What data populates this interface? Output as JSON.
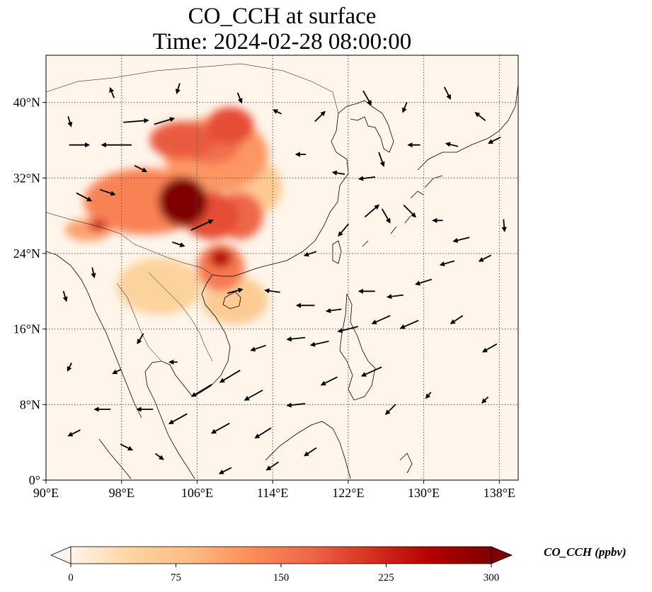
{
  "title_line1": "CO_CCH at surface",
  "title_line2": "Time: 2024-02-28 08:00:00",
  "map": {
    "lon_range": [
      90,
      140
    ],
    "lat_range": [
      0,
      45
    ],
    "lon_ticks": [
      {
        "value": 90,
        "label": "90°E"
      },
      {
        "value": 98,
        "label": "98°E"
      },
      {
        "value": 106,
        "label": "106°E"
      },
      {
        "value": 114,
        "label": "114°E"
      },
      {
        "value": 122,
        "label": "122°E"
      },
      {
        "value": 130,
        "label": "130°E"
      },
      {
        "value": 138,
        "label": "138°E"
      }
    ],
    "lat_ticks": [
      {
        "value": 0,
        "label": "0°"
      },
      {
        "value": 8,
        "label": "8°N"
      },
      {
        "value": 16,
        "label": "16°N"
      },
      {
        "value": 24,
        "label": "24°N"
      },
      {
        "value": 32,
        "label": "32°N"
      },
      {
        "value": 40,
        "label": "40°N"
      }
    ],
    "gridlines": "dotted",
    "background_color": "#fff5eb",
    "plumes": [
      {
        "lon": 100.5,
        "lat": 29.5,
        "rlon": 6.5,
        "rlat": 3.5,
        "value": 140
      },
      {
        "lon": 108.0,
        "lat": 34.5,
        "rlon": 5.5,
        "rlat": 4.0,
        "value": 120
      },
      {
        "lon": 104.5,
        "lat": 36.0,
        "rlon": 3.5,
        "rlat": 2.0,
        "value": 180
      },
      {
        "lon": 109.5,
        "lat": 37.5,
        "rlon": 2.5,
        "rlat": 2.0,
        "value": 190
      },
      {
        "lon": 107.5,
        "lat": 35.5,
        "rlon": 3.0,
        "rlat": 2.0,
        "value": 160
      },
      {
        "lon": 104.5,
        "lat": 29.5,
        "rlon": 2.6,
        "rlat": 2.6,
        "value": 300
      },
      {
        "lon": 107.5,
        "lat": 28.0,
        "rlon": 3.0,
        "rlat": 2.5,
        "value": 190
      },
      {
        "lon": 110.5,
        "lat": 28.0,
        "rlon": 2.5,
        "rlat": 2.5,
        "value": 170
      },
      {
        "lon": 108.5,
        "lat": 22.5,
        "rlon": 2.5,
        "rlat": 2.5,
        "value": 150
      },
      {
        "lon": 108.5,
        "lat": 23.5,
        "rlon": 1.2,
        "rlat": 1.0,
        "value": 250
      },
      {
        "lon": 94.5,
        "lat": 26.5,
        "rlon": 2.5,
        "rlat": 1.2,
        "value": 110
      },
      {
        "lon": 95.5,
        "lat": 27.0,
        "rlon": 1.0,
        "rlat": 0.6,
        "value": 230
      },
      {
        "lon": 102.0,
        "lat": 20.5,
        "rlon": 4.5,
        "rlat": 3.0,
        "value": 45
      },
      {
        "lon": 110.0,
        "lat": 19.0,
        "rlon": 3.5,
        "rlat": 2.5,
        "value": 60
      },
      {
        "lon": 112.0,
        "lat": 31.0,
        "rlon": 3.0,
        "rlat": 3.0,
        "value": 60
      }
    ],
    "wind_vectors": [
      {
        "lon": 97.5,
        "lat": 35.5,
        "u": -3,
        "v": 0
      },
      {
        "lon": 99.5,
        "lat": 38.0,
        "u": 2.5,
        "v": 0.2
      },
      {
        "lon": 102.5,
        "lat": 38.0,
        "u": 2,
        "v": 0.6
      },
      {
        "lon": 93.5,
        "lat": 35.5,
        "u": 2,
        "v": 0
      },
      {
        "lon": 96.5,
        "lat": 30.5,
        "u": 1.5,
        "v": -0.5
      },
      {
        "lon": 94.0,
        "lat": 30.0,
        "u": 1.5,
        "v": -0.8
      },
      {
        "lon": 100.0,
        "lat": 33.0,
        "u": 1.2,
        "v": -0.6
      },
      {
        "lon": 106.5,
        "lat": 27.0,
        "u": 2.2,
        "v": 1
      },
      {
        "lon": 104.0,
        "lat": 25.0,
        "u": 1.2,
        "v": -0.4
      },
      {
        "lon": 110.0,
        "lat": 20.0,
        "u": 1.5,
        "v": 0.4
      },
      {
        "lon": 114.0,
        "lat": 20.0,
        "u": -1.5,
        "v": 0.2
      },
      {
        "lon": 117.5,
        "lat": 18.5,
        "u": -1.8,
        "v": 0
      },
      {
        "lon": 120.5,
        "lat": 18.0,
        "u": -1.5,
        "v": -0.2
      },
      {
        "lon": 124.0,
        "lat": 20.0,
        "u": -1.6,
        "v": 0
      },
      {
        "lon": 127.0,
        "lat": 19.5,
        "u": -1.6,
        "v": -0.2
      },
      {
        "lon": 130.0,
        "lat": 21.0,
        "u": -1.6,
        "v": -0.5
      },
      {
        "lon": 125.5,
        "lat": 17.0,
        "u": -1.8,
        "v": -0.8
      },
      {
        "lon": 128.5,
        "lat": 16.5,
        "u": -1.8,
        "v": -0.8
      },
      {
        "lon": 122.0,
        "lat": 16.0,
        "u": -2,
        "v": -0.5
      },
      {
        "lon": 116.5,
        "lat": 15.0,
        "u": -1.8,
        "v": -0.2
      },
      {
        "lon": 119.0,
        "lat": 14.5,
        "u": -1.8,
        "v": -0.4
      },
      {
        "lon": 112.5,
        "lat": 14.0,
        "u": -1.5,
        "v": -0.5
      },
      {
        "lon": 109.5,
        "lat": 11.0,
        "u": -2,
        "v": -1.2
      },
      {
        "lon": 106.5,
        "lat": 9.5,
        "u": -2,
        "v": -1.2
      },
      {
        "lon": 112.0,
        "lat": 9.0,
        "u": -1.8,
        "v": -1
      },
      {
        "lon": 116.5,
        "lat": 8.0,
        "u": -1.8,
        "v": -0.2
      },
      {
        "lon": 120.0,
        "lat": 10.5,
        "u": -1.6,
        "v": -0.8
      },
      {
        "lon": 124.5,
        "lat": 11.5,
        "u": -2,
        "v": -0.9
      },
      {
        "lon": 118.0,
        "lat": 3.0,
        "u": -1.2,
        "v": -0.8
      },
      {
        "lon": 113.0,
        "lat": 5.0,
        "u": -1.6,
        "v": -1
      },
      {
        "lon": 108.5,
        "lat": 5.5,
        "u": -1.8,
        "v": -1
      },
      {
        "lon": 104.0,
        "lat": 6.5,
        "u": -1.8,
        "v": -1
      },
      {
        "lon": 100.5,
        "lat": 7.5,
        "u": -1.6,
        "v": 0
      },
      {
        "lon": 96.0,
        "lat": 7.5,
        "u": -1.6,
        "v": 0
      },
      {
        "lon": 93.0,
        "lat": 5.0,
        "u": -1.2,
        "v": -0.6
      },
      {
        "lon": 98.5,
        "lat": 3.5,
        "u": 1.2,
        "v": -0.6
      },
      {
        "lon": 102.0,
        "lat": 2.5,
        "u": 0.8,
        "v": -0.6
      },
      {
        "lon": 109.0,
        "lat": 1.0,
        "u": -1.2,
        "v": -0.6
      },
      {
        "lon": 114.0,
        "lat": 1.5,
        "u": -1.2,
        "v": -0.8
      },
      {
        "lon": 126.5,
        "lat": 7.5,
        "u": -1,
        "v": -1
      },
      {
        "lon": 118.0,
        "lat": 24.0,
        "u": -1.2,
        "v": -0.4
      },
      {
        "lon": 121.5,
        "lat": 26.5,
        "u": -1,
        "v": -1.2
      },
      {
        "lon": 124.5,
        "lat": 28.5,
        "u": 1.4,
        "v": 1.2
      },
      {
        "lon": 126.0,
        "lat": 28.0,
        "u": 0.8,
        "v": -1.4
      },
      {
        "lon": 128.5,
        "lat": 28.5,
        "u": 1.2,
        "v": -1.2
      },
      {
        "lon": 131.5,
        "lat": 27.5,
        "u": -1,
        "v": 0
      },
      {
        "lon": 134.0,
        "lat": 25.5,
        "u": -1.6,
        "v": -0.4
      },
      {
        "lon": 136.5,
        "lat": 23.5,
        "u": -1.2,
        "v": -0.6
      },
      {
        "lon": 132.5,
        "lat": 23.0,
        "u": -1.4,
        "v": -0.4
      },
      {
        "lon": 137.0,
        "lat": 14.0,
        "u": -1.4,
        "v": -0.8
      },
      {
        "lon": 133.5,
        "lat": 17.0,
        "u": -1.2,
        "v": -0.8
      },
      {
        "lon": 124.0,
        "lat": 32.0,
        "u": -1.6,
        "v": -0.2
      },
      {
        "lon": 121.0,
        "lat": 32.5,
        "u": -1.2,
        "v": 0.2
      },
      {
        "lon": 117.0,
        "lat": 34.5,
        "u": -1.0,
        "v": 0
      },
      {
        "lon": 125.5,
        "lat": 34.0,
        "u": 0.5,
        "v": -1.4
      },
      {
        "lon": 129.0,
        "lat": 35.5,
        "u": -1.2,
        "v": 0
      },
      {
        "lon": 133.0,
        "lat": 35.5,
        "u": -1.2,
        "v": 0.3
      },
      {
        "lon": 137.5,
        "lat": 36.0,
        "u": -1.2,
        "v": -0.6
      },
      {
        "lon": 114.5,
        "lat": 39.0,
        "u": -0.8,
        "v": 0.4
      },
      {
        "lon": 119.0,
        "lat": 38.5,
        "u": 1.0,
        "v": 1.0
      },
      {
        "lon": 124.0,
        "lat": 40.5,
        "u": 0.8,
        "v": -1.4
      },
      {
        "lon": 128.0,
        "lat": 39.5,
        "u": -0.4,
        "v": -1.0
      },
      {
        "lon": 132.5,
        "lat": 41.0,
        "u": 0.6,
        "v": -1.2
      },
      {
        "lon": 136.0,
        "lat": 38.5,
        "u": -1,
        "v": 0.8
      },
      {
        "lon": 110.5,
        "lat": 40.5,
        "u": 0.4,
        "v": -1.0
      },
      {
        "lon": 104.0,
        "lat": 41.5,
        "u": -0.3,
        "v": -1.0
      },
      {
        "lon": 97.0,
        "lat": 41.0,
        "u": -0.4,
        "v": 1.0
      },
      {
        "lon": 92.5,
        "lat": 38.0,
        "u": 0.3,
        "v": -1.0
      },
      {
        "lon": 95.0,
        "lat": 22.0,
        "u": 0.2,
        "v": -1.0
      },
      {
        "lon": 92.0,
        "lat": 19.5,
        "u": 0.3,
        "v": -1.0
      },
      {
        "lon": 100.0,
        "lat": 15.0,
        "u": -0.6,
        "v": -1.0
      },
      {
        "lon": 103.5,
        "lat": 12.5,
        "u": -0.8,
        "v": 0
      },
      {
        "lon": 97.5,
        "lat": 11.5,
        "u": -0.8,
        "v": -0.4
      },
      {
        "lon": 92.5,
        "lat": 12.0,
        "u": -0.4,
        "v": -0.8
      },
      {
        "lon": 130.5,
        "lat": 9.0,
        "u": -0.5,
        "v": -0.6
      },
      {
        "lon": 136.5,
        "lat": 8.5,
        "u": -0.6,
        "v": -0.6
      },
      {
        "lon": 138.5,
        "lat": 27.0,
        "u": 0.1,
        "v": -1.2
      }
    ]
  },
  "colorbar": {
    "min": 0,
    "max": 300,
    "extend": "both",
    "colormap": "OrRd",
    "ticks": [
      {
        "value": 0,
        "label": "0"
      },
      {
        "value": 75,
        "label": "75"
      },
      {
        "value": 150,
        "label": "150"
      },
      {
        "value": 225,
        "label": "225"
      },
      {
        "value": 300,
        "label": "300"
      }
    ],
    "label": "CO_CCH (ppbv)",
    "colors": [
      "#fff5eb",
      "#fdd49e",
      "#fdbb84",
      "#fc8d59",
      "#ef6548",
      "#d7301f",
      "#b30000",
      "#7f0000"
    ]
  }
}
